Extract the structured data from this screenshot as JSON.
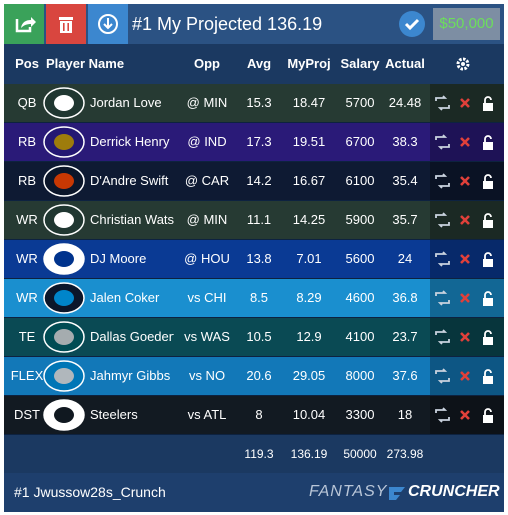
{
  "toolbar": {
    "title": "#1 My Projected 136.19",
    "salary_cap": "$50,000"
  },
  "table": {
    "columns": [
      "Pos",
      "Player Name",
      "Opp",
      "Avg",
      "MyProj",
      "Salary",
      "Actual"
    ],
    "rows": [
      [
        "QB",
        "Jordan Love",
        "@ MIN",
        "15.3",
        "18.47",
        "5700",
        "24.48"
      ],
      [
        "RB",
        "Derrick Henry",
        "@ IND",
        "17.3",
        "19.51",
        "6700",
        "38.3"
      ],
      [
        "RB",
        "D'Andre Swift",
        "@ CAR",
        "14.2",
        "16.67",
        "6100",
        "35.4"
      ],
      [
        "WR",
        "Christian Watsc",
        "@ MIN",
        "11.1",
        "14.25",
        "5900",
        "35.7"
      ],
      [
        "WR",
        "DJ Moore",
        "@ HOU",
        "13.8",
        "7.01",
        "5600",
        "24"
      ],
      [
        "WR",
        "Jalen Coker",
        "vs CHI",
        "8.5",
        "8.29",
        "4600",
        "36.8"
      ],
      [
        "TE",
        "Dallas Goedert",
        "vs WAS",
        "10.5",
        "12.9",
        "4100",
        "23.7"
      ],
      [
        "FLEX",
        "Jahmyr Gibbs",
        "vs NO",
        "20.6",
        "29.05",
        "8000",
        "37.6"
      ],
      [
        "DST",
        "Steelers",
        "vs ATL",
        "8",
        "10.04",
        "3300",
        "18"
      ]
    ],
    "totals": [
      "119.3",
      "136.19",
      "50000",
      "273.98"
    ]
  },
  "footer": {
    "lineup_name": "#1 Jwussow28s_Crunch",
    "brand_left": "FANTASY",
    "brand_right": "CRUNCHER"
  }
}
